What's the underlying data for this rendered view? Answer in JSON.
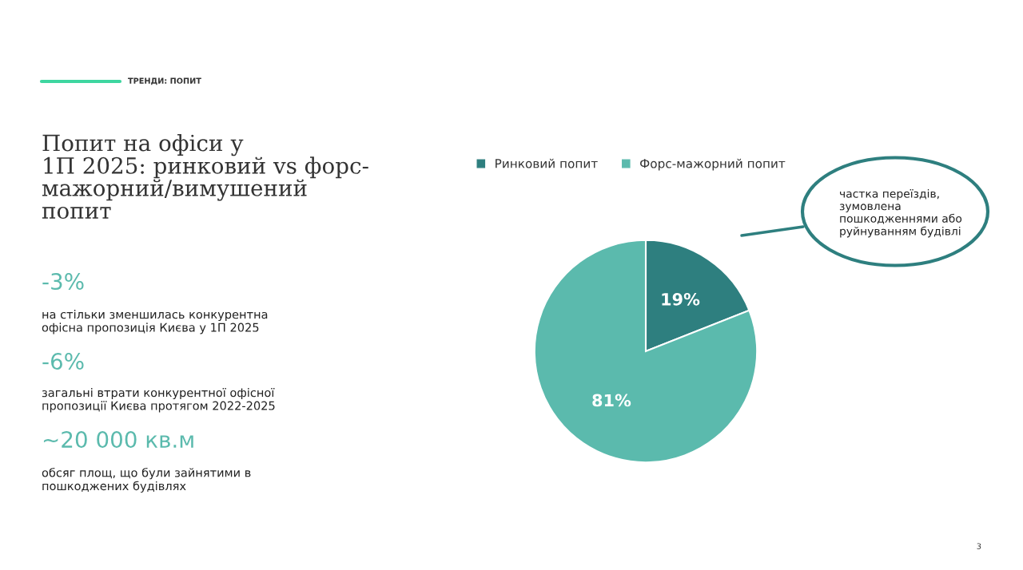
{
  "chart_data": {
    "type": "pie",
    "title": "Попит на офіси у\n1П 2025: ринковий vs форс-\nмажорний/вимушений\nпопит",
    "subtitle": "ТРЕНДИ: ПОПИТ",
    "categories": [
      "Ринковий попит",
      "Форс-мажорний попит"
    ],
    "values": [
      19,
      81
    ],
    "colors": [
      "#2e7f7f",
      "#5bbaad"
    ],
    "value_labels": [
      "19%",
      "81%"
    ],
    "legend": "top",
    "annotations": [
      "-3%",
      "на стільки зменшилась конкурентна\nофісна пропозиція Києва у 1П 2025",
      "-6%",
      "загальні втрати конкурентної офісної\nпропозиції Києва протягом 2022-2025",
      "~20 000 кв.м",
      "обсяг площ, що були зайнятими в\nпошкоджених будівлях",
      "частка переїздів,\nзумовлена\nпошкодженнями або\nруйнуванням будівлі",
      "3"
    ]
  }
}
